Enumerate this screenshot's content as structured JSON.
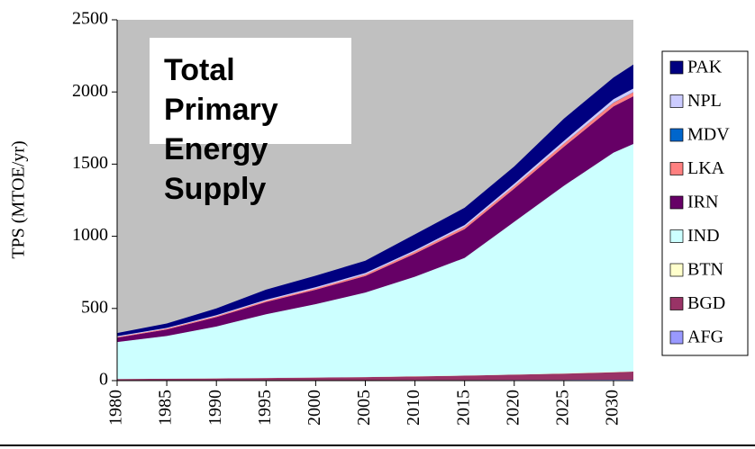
{
  "chart_data": {
    "type": "stacked_area",
    "title": "Total Primary Energy Supply",
    "ylabel": "TPS (MTOE/yr)",
    "x": [
      1980,
      1985,
      1990,
      1995,
      2000,
      2005,
      2010,
      2015,
      2020,
      2025,
      2030,
      2032
    ],
    "xlim": [
      1980,
      2032
    ],
    "xticks": [
      1980,
      1985,
      1990,
      1995,
      2000,
      2005,
      2010,
      2015,
      2020,
      2025,
      2030
    ],
    "ylim": [
      0,
      2500
    ],
    "yticks": [
      0,
      500,
      1000,
      1500,
      2000,
      2500
    ],
    "background": "#c0c0c0",
    "legend": "right",
    "series": [
      {
        "name": "AFG",
        "color": "#9999ff",
        "values": [
          3,
          3,
          3,
          3,
          3,
          3,
          4,
          4,
          5,
          5,
          6,
          6
        ]
      },
      {
        "name": "BGD",
        "color": "#993366",
        "values": [
          8,
          10,
          12,
          15,
          18,
          21,
          25,
          30,
          36,
          43,
          52,
          56
        ]
      },
      {
        "name": "BTN",
        "color": "#ffffcc",
        "values": [
          0.5,
          0.5,
          1,
          1,
          1,
          1,
          2,
          2,
          2,
          3,
          3,
          3
        ]
      },
      {
        "name": "IND",
        "color": "#ccffff",
        "values": [
          256,
          296,
          359,
          441,
          508,
          585,
          689,
          814,
          1057,
          1299,
          1519,
          1575
        ]
      },
      {
        "name": "IRN",
        "color": "#660066",
        "values": [
          30,
          45,
          65,
          85,
          100,
          115,
          160,
          200,
          230,
          270,
          320,
          330
        ]
      },
      {
        "name": "LKA",
        "color": "#ff8080",
        "values": [
          5,
          6,
          7,
          8,
          9,
          11,
          13,
          15,
          18,
          22,
          26,
          28
        ]
      },
      {
        "name": "MDV",
        "color": "#0066cc",
        "values": [
          0.2,
          0.2,
          0.3,
          0.3,
          0.4,
          0.5,
          0.6,
          0.8,
          1,
          1,
          2,
          2
        ]
      },
      {
        "name": "NPL",
        "color": "#ccccff",
        "values": [
          5,
          5,
          6,
          7,
          8,
          9,
          10,
          12,
          15,
          18,
          22,
          24
        ]
      },
      {
        "name": "PAK",
        "color": "#000080",
        "values": [
          22,
          30,
          47,
          70,
          80,
          85,
          110,
          120,
          120,
          154,
          150,
          166
        ]
      }
    ]
  }
}
